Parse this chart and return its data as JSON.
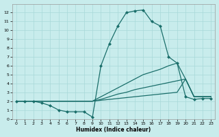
{
  "xlabel": "Humidex (Indice chaleur)",
  "bg_color": "#c8ecec",
  "grid_color": "#a8d8d8",
  "line_color": "#1a6e6a",
  "xlim": [
    -0.5,
    23.5
  ],
  "ylim": [
    0,
    13
  ],
  "x_ticks": [
    0,
    1,
    2,
    3,
    4,
    5,
    6,
    7,
    8,
    9,
    10,
    11,
    12,
    13,
    14,
    15,
    16,
    17,
    18,
    19,
    20,
    21,
    22,
    23
  ],
  "y_ticks": [
    0,
    1,
    2,
    3,
    4,
    5,
    6,
    7,
    8,
    9,
    10,
    11,
    12
  ],
  "lines": [
    {
      "x": [
        0,
        1,
        2,
        3,
        4,
        5,
        6,
        7,
        8,
        9,
        10,
        11,
        12,
        13,
        14,
        15,
        16,
        17,
        18,
        19,
        20,
        21,
        22,
        23
      ],
      "y": [
        2.0,
        2.0,
        2.0,
        1.8,
        1.5,
        1.0,
        0.8,
        0.8,
        0.8,
        0.2,
        6.0,
        8.5,
        10.5,
        12.0,
        12.2,
        12.3,
        11.0,
        10.5,
        7.0,
        6.3,
        2.5,
        2.2,
        2.3,
        2.3
      ],
      "marker": "D",
      "markersize": 2.0,
      "linewidth": 0.9
    },
    {
      "x": [
        0,
        1,
        2,
        3,
        4,
        5,
        6,
        7,
        8,
        9,
        10,
        11,
        12,
        13,
        14,
        15,
        16,
        17,
        18,
        19,
        20,
        21,
        22,
        23
      ],
      "y": [
        2.0,
        2.0,
        2.0,
        2.0,
        2.0,
        2.0,
        2.0,
        2.0,
        2.0,
        2.0,
        2.5,
        3.0,
        3.5,
        4.0,
        4.5,
        5.0,
        5.3,
        5.6,
        6.0,
        6.3,
        4.5,
        2.5,
        2.5,
        2.5
      ],
      "marker": null,
      "markersize": 0,
      "linewidth": 0.9
    },
    {
      "x": [
        0,
        1,
        2,
        3,
        4,
        5,
        6,
        7,
        8,
        9,
        10,
        11,
        12,
        13,
        14,
        15,
        16,
        17,
        18,
        19,
        20,
        21,
        22,
        23
      ],
      "y": [
        2.0,
        2.0,
        2.0,
        2.0,
        2.0,
        2.0,
        2.0,
        2.0,
        2.0,
        2.0,
        2.2,
        2.5,
        2.8,
        3.0,
        3.3,
        3.5,
        3.7,
        3.9,
        4.1,
        4.3,
        4.5,
        2.5,
        2.5,
        2.5
      ],
      "marker": null,
      "markersize": 0,
      "linewidth": 0.9
    },
    {
      "x": [
        0,
        1,
        2,
        3,
        4,
        5,
        6,
        7,
        8,
        9,
        10,
        11,
        12,
        13,
        14,
        15,
        16,
        17,
        18,
        19,
        20,
        21,
        22,
        23
      ],
      "y": [
        2.0,
        2.0,
        2.0,
        2.0,
        2.0,
        2.0,
        2.0,
        2.0,
        2.0,
        2.0,
        2.1,
        2.2,
        2.3,
        2.4,
        2.5,
        2.6,
        2.7,
        2.8,
        2.9,
        3.0,
        4.5,
        2.5,
        2.5,
        2.5
      ],
      "marker": null,
      "markersize": 0,
      "linewidth": 0.9
    }
  ]
}
